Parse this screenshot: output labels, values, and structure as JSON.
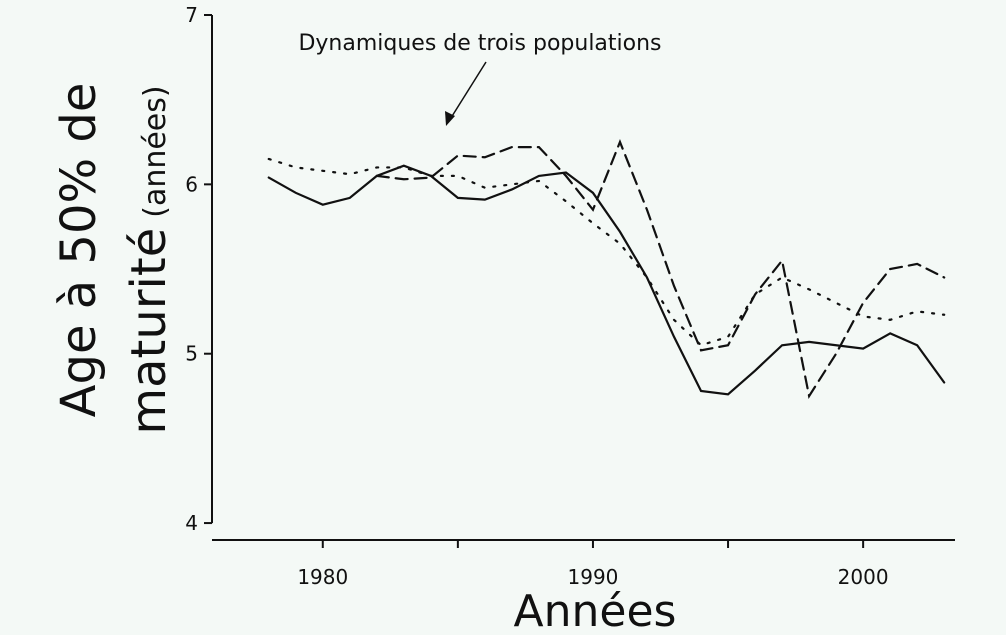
{
  "chart_data": {
    "type": "line",
    "annotation": "Dynamiques de trois populations",
    "xlabel": "Années",
    "ylabel": [
      "Age à 50% de",
      "maturité",
      "(années)"
    ],
    "x": [
      1978,
      1979,
      1980,
      1981,
      1982,
      1983,
      1984,
      1985,
      1986,
      1987,
      1988,
      1989,
      1990,
      1991,
      1992,
      1993,
      1994,
      1995,
      1996,
      1997,
      1998,
      1999,
      2000,
      2001,
      2002,
      2003
    ],
    "series": [
      {
        "color": "#111111",
        "style": "solid",
        "values": [
          6.04,
          5.95,
          5.88,
          5.92,
          6.05,
          6.11,
          6.05,
          5.92,
          5.91,
          5.97,
          6.05,
          6.07,
          5.95,
          5.72,
          5.45,
          5.1,
          4.78,
          4.76,
          4.9,
          5.05,
          5.07,
          5.05,
          5.03,
          5.12,
          5.05,
          4.83
        ]
      },
      {
        "color": "#111111",
        "style": "dashed",
        "values": [
          null,
          null,
          null,
          null,
          6.05,
          6.03,
          6.04,
          6.17,
          6.16,
          6.22,
          6.22,
          6.05,
          5.85,
          6.25,
          5.85,
          5.4,
          5.02,
          5.05,
          5.35,
          5.55,
          4.75,
          5.0,
          5.3,
          5.5,
          5.53,
          5.45
        ]
      },
      {
        "color": "#111111",
        "style": "dotted",
        "values": [
          6.15,
          6.1,
          6.08,
          6.06,
          6.1,
          6.1,
          6.05,
          6.05,
          5.98,
          6.0,
          6.02,
          5.9,
          5.77,
          5.65,
          5.45,
          5.2,
          5.05,
          5.1,
          5.35,
          5.45,
          5.38,
          5.3,
          5.22,
          5.2,
          5.25,
          5.23
        ]
      }
    ],
    "xlim": [
      1975.9,
      2003.4
    ],
    "xticks": [
      1980,
      1990,
      2000
    ],
    "xminorticks": [
      1985,
      1995
    ],
    "ylim": [
      3.9,
      7.0
    ],
    "yticks": [
      4,
      5,
      6,
      7
    ],
    "grid": false,
    "background": "#f4f9f6"
  }
}
